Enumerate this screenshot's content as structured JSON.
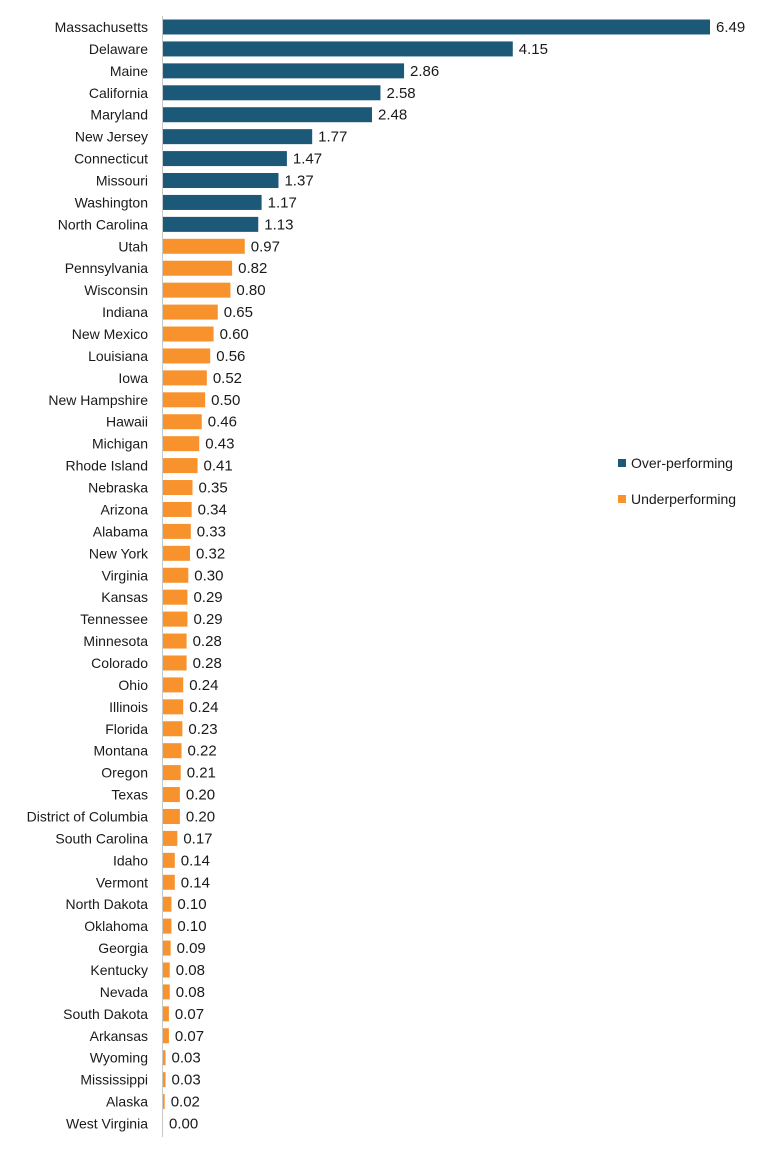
{
  "chart_data": {
    "type": "bar",
    "orientation": "horizontal",
    "title": "",
    "xlabel": "",
    "ylabel": "",
    "grid": false,
    "legend_position": "right",
    "colors": {
      "over": "#1c5878",
      "under": "#f7922c",
      "axis": "#c8c8c8"
    },
    "legend": [
      {
        "key": "over",
        "label": "Over-performing"
      },
      {
        "key": "under",
        "label": "Underperforming"
      }
    ],
    "bars": [
      {
        "category": "Massachusetts",
        "value": 6.49,
        "label": "6.49",
        "group": "over"
      },
      {
        "category": "Delaware",
        "value": 4.15,
        "label": "4.15",
        "group": "over"
      },
      {
        "category": "Maine",
        "value": 2.86,
        "label": "2.86",
        "group": "over"
      },
      {
        "category": "California",
        "value": 2.58,
        "label": "2.58",
        "group": "over"
      },
      {
        "category": "Maryland",
        "value": 2.48,
        "label": "2.48",
        "group": "over"
      },
      {
        "category": "New Jersey",
        "value": 1.77,
        "label": "1.77",
        "group": "over"
      },
      {
        "category": "Connecticut",
        "value": 1.47,
        "label": "1.47",
        "group": "over"
      },
      {
        "category": "Missouri",
        "value": 1.37,
        "label": "1.37",
        "group": "over"
      },
      {
        "category": "Washington",
        "value": 1.17,
        "label": "1.17",
        "group": "over"
      },
      {
        "category": "North Carolina",
        "value": 1.13,
        "label": "1.13",
        "group": "over"
      },
      {
        "category": "Utah",
        "value": 0.97,
        "label": "0.97",
        "group": "under"
      },
      {
        "category": "Pennsylvania",
        "value": 0.82,
        "label": "0.82",
        "group": "under"
      },
      {
        "category": "Wisconsin",
        "value": 0.8,
        "label": "0.80",
        "group": "under"
      },
      {
        "category": "Indiana",
        "value": 0.65,
        "label": "0.65",
        "group": "under"
      },
      {
        "category": "New Mexico",
        "value": 0.6,
        "label": "0.60",
        "group": "under"
      },
      {
        "category": "Louisiana",
        "value": 0.56,
        "label": "0.56",
        "group": "under"
      },
      {
        "category": "Iowa",
        "value": 0.52,
        "label": "0.52",
        "group": "under"
      },
      {
        "category": "New Hampshire",
        "value": 0.5,
        "label": "0.50",
        "group": "under"
      },
      {
        "category": "Hawaii",
        "value": 0.46,
        "label": "0.46",
        "group": "under"
      },
      {
        "category": "Michigan",
        "value": 0.43,
        "label": "0.43",
        "group": "under"
      },
      {
        "category": "Rhode Island",
        "value": 0.41,
        "label": "0.41",
        "group": "under"
      },
      {
        "category": "Nebraska",
        "value": 0.35,
        "label": "0.35",
        "group": "under"
      },
      {
        "category": "Arizona",
        "value": 0.34,
        "label": "0.34",
        "group": "under"
      },
      {
        "category": "Alabama",
        "value": 0.33,
        "label": "0.33",
        "group": "under"
      },
      {
        "category": "New York",
        "value": 0.32,
        "label": "0.32",
        "group": "under"
      },
      {
        "category": "Virginia",
        "value": 0.3,
        "label": "0.30",
        "group": "under"
      },
      {
        "category": "Kansas",
        "value": 0.29,
        "label": "0.29",
        "group": "under"
      },
      {
        "category": "Tennessee",
        "value": 0.29,
        "label": "0.29",
        "group": "under"
      },
      {
        "category": "Minnesota",
        "value": 0.28,
        "label": "0.28",
        "group": "under"
      },
      {
        "category": "Colorado",
        "value": 0.28,
        "label": "0.28",
        "group": "under"
      },
      {
        "category": "Ohio",
        "value": 0.24,
        "label": "0.24",
        "group": "under"
      },
      {
        "category": "Illinois",
        "value": 0.24,
        "label": "0.24",
        "group": "under"
      },
      {
        "category": "Florida",
        "value": 0.23,
        "label": "0.23",
        "group": "under"
      },
      {
        "category": "Montana",
        "value": 0.22,
        "label": "0.22",
        "group": "under"
      },
      {
        "category": "Oregon",
        "value": 0.21,
        "label": "0.21",
        "group": "under"
      },
      {
        "category": "Texas",
        "value": 0.2,
        "label": "0.20",
        "group": "under"
      },
      {
        "category": "District of Columbia",
        "value": 0.2,
        "label": "0.20",
        "group": "under"
      },
      {
        "category": "South Carolina",
        "value": 0.17,
        "label": "0.17",
        "group": "under"
      },
      {
        "category": "Idaho",
        "value": 0.14,
        "label": "0.14",
        "group": "under"
      },
      {
        "category": "Vermont",
        "value": 0.14,
        "label": "0.14",
        "group": "under"
      },
      {
        "category": "North Dakota",
        "value": 0.1,
        "label": "0.10",
        "group": "under"
      },
      {
        "category": "Oklahoma",
        "value": 0.1,
        "label": "0.10",
        "group": "under"
      },
      {
        "category": "Georgia",
        "value": 0.09,
        "label": "0.09",
        "group": "under"
      },
      {
        "category": "Kentucky",
        "value": 0.08,
        "label": "0.08",
        "group": "under"
      },
      {
        "category": "Nevada",
        "value": 0.08,
        "label": "0.08",
        "group": "under"
      },
      {
        "category": "South Dakota",
        "value": 0.07,
        "label": "0.07",
        "group": "under"
      },
      {
        "category": "Arkansas",
        "value": 0.07,
        "label": "0.07",
        "group": "under"
      },
      {
        "category": "Wyoming",
        "value": 0.03,
        "label": "0.03",
        "group": "under"
      },
      {
        "category": "Mississippi",
        "value": 0.03,
        "label": "0.03",
        "group": "under"
      },
      {
        "category": "Alaska",
        "value": 0.02,
        "label": "0.02",
        "group": "under"
      },
      {
        "category": "West Virginia",
        "value": 0.0,
        "label": "0.00",
        "group": "under"
      }
    ]
  }
}
